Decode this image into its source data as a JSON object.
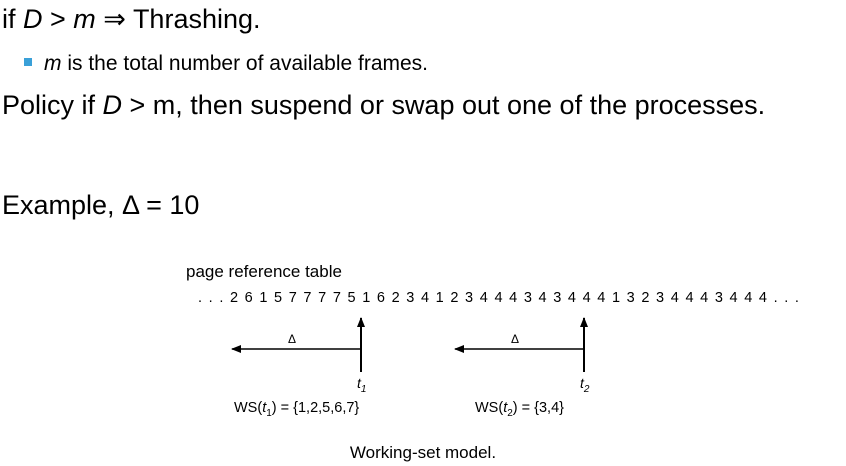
{
  "line1": {
    "prefix": "if ",
    "var_d": "D",
    "middle": " > ",
    "var_m": "m",
    "arrow": " ⇒ ",
    "suffix": "Thrashing."
  },
  "bullet": {
    "var_m": "m",
    "text": " is the total number of available frames."
  },
  "policy": {
    "prefix": "Policy if ",
    "var_d": "D",
    "suffix": " > m, then suspend or swap out one of the processes."
  },
  "example": {
    "text": "Example, Δ = 10"
  },
  "figure": {
    "label": "page reference table",
    "sequence": ". . . 2 6 1 5 7 7 7 7 5 1 6 2 3 4 1 2 3 4 4 4 3 4 3 4 4 4 1 3 2 3 4 4 4 3 4 4 4 . . .",
    "delta_symbol": "Δ",
    "t1_label": "t",
    "t1_sub": "1",
    "t2_label": "t",
    "t2_sub": "2",
    "ws1_prefix": "WS(",
    "ws1_t": "t",
    "ws1_sub": "1",
    "ws1_suffix": ") = {1,2,5,6,7}",
    "ws2_prefix": "WS(",
    "ws2_t": "t",
    "ws2_sub": "2",
    "ws2_suffix": ") = {3,4}"
  },
  "caption": "Working-set model.",
  "colors": {
    "bullet": "#3aa0d8"
  }
}
